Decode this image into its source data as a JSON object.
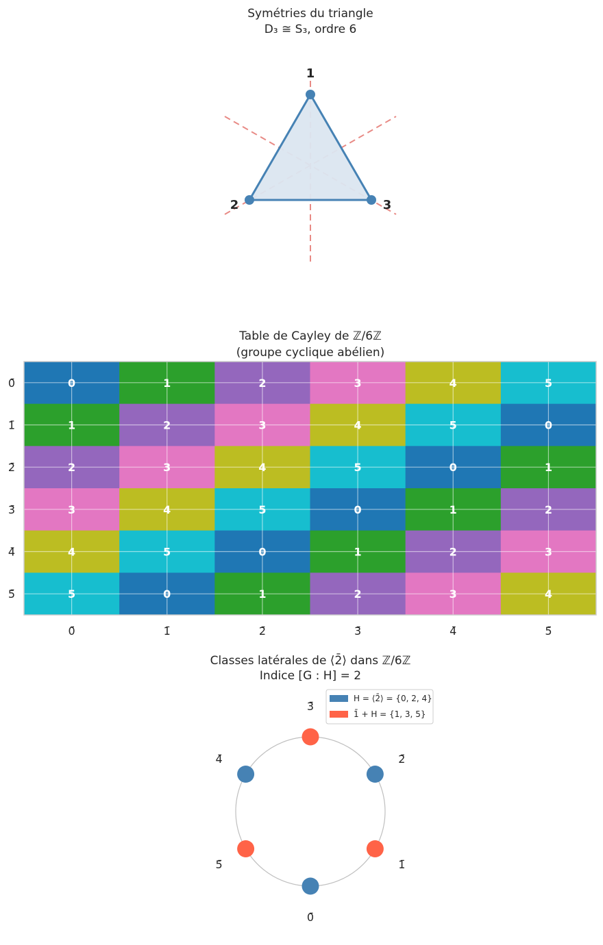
{
  "chart_data": [
    {
      "type": "diagram",
      "title_lines": [
        "Symétries du triangle",
        "D₃ ≅ S₃, ordre 6"
      ],
      "vertices": [
        {
          "label": "1"
        },
        {
          "label": "2"
        },
        {
          "label": "3"
        }
      ],
      "symmetry_axes": 3,
      "colors": {
        "edge": "#4682b4",
        "fill": "#dbe6f0",
        "axis": "#e88a85",
        "vertex": "#4682b4"
      }
    },
    {
      "type": "heatmap",
      "title_lines": [
        "Table de Cayley de ℤ/6ℤ",
        "(groupe cyclique abélien)"
      ],
      "row_labels": [
        "0̄",
        "1̄",
        "2̄",
        "3̄",
        "4̄",
        "5̄"
      ],
      "col_labels": [
        "0̄",
        "1̄",
        "2̄",
        "3̄",
        "4̄",
        "5̄"
      ],
      "values": [
        [
          0,
          1,
          2,
          3,
          4,
          5
        ],
        [
          1,
          2,
          3,
          4,
          5,
          0
        ],
        [
          2,
          3,
          4,
          5,
          0,
          1
        ],
        [
          3,
          4,
          5,
          0,
          1,
          2
        ],
        [
          4,
          5,
          0,
          1,
          2,
          3
        ],
        [
          5,
          0,
          1,
          2,
          3,
          4
        ]
      ],
      "palette": [
        "#1f77b4",
        "#2ca02c",
        "#9467bd",
        "#e377c2",
        "#bcbd22",
        "#17becf"
      ]
    },
    {
      "type": "scatter",
      "title_lines": [
        "Classes latérales de ⟨2̄⟩ dans ℤ/6ℤ",
        "Indice [G : H] = 2"
      ],
      "points": [
        {
          "label": "0̄",
          "value": 0,
          "coset": 0
        },
        {
          "label": "1̄",
          "value": 1,
          "coset": 1
        },
        {
          "label": "2̄",
          "value": 2,
          "coset": 0
        },
        {
          "label": "3̄",
          "value": 3,
          "coset": 1
        },
        {
          "label": "4̄",
          "value": 4,
          "coset": 0
        },
        {
          "label": "5̄",
          "value": 5,
          "coset": 1
        }
      ],
      "legend": [
        {
          "label": "H = ⟨2̄⟩ = {0, 2, 4}",
          "color": "#4682b4"
        },
        {
          "label": "1̄ + H = {1, 3, 5}",
          "color": "#ff6347"
        }
      ],
      "circle_color": "#bfbfbf"
    }
  ]
}
